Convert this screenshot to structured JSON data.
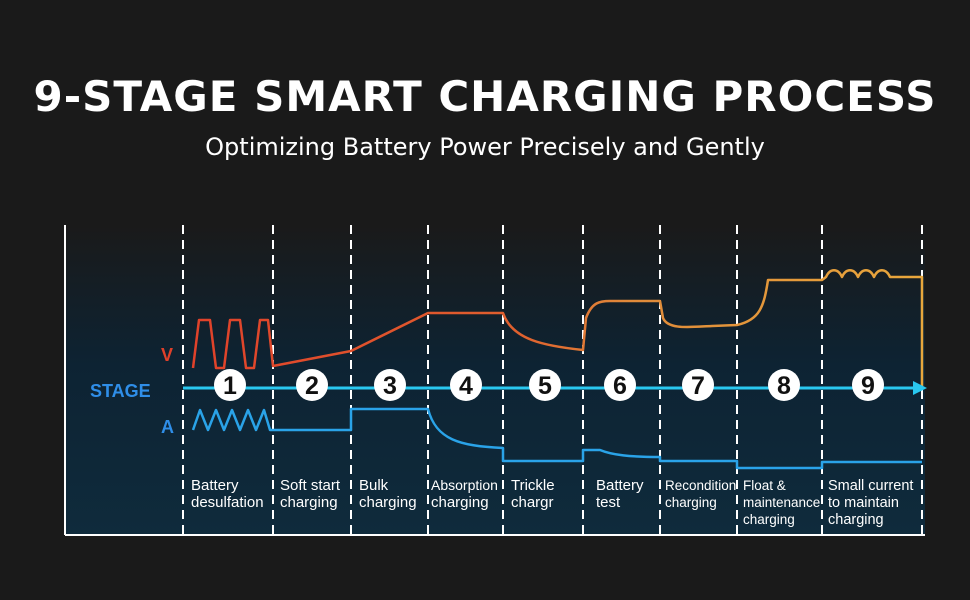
{
  "header": {
    "title": "9-STAGE SMART CHARGING PROCESS",
    "subtitle": "Optimizing Battery Power Precisely and Gently"
  },
  "axis_labels": {
    "voltage": "V",
    "stage": "STAGE",
    "current": "A"
  },
  "colors": {
    "background": "#1a1a1a",
    "panel": "#0f2a3a",
    "voltage_early": "#e04a2a",
    "voltage_late": "#e8a23c",
    "current": "#2aa3e8",
    "stage_line": "#29c8f0"
  },
  "stages": [
    {
      "number": "1",
      "label_lines": [
        "Battery",
        "desulfation"
      ]
    },
    {
      "number": "2",
      "label_lines": [
        "Soft start",
        "charging"
      ]
    },
    {
      "number": "3",
      "label_lines": [
        "Bulk",
        "charging"
      ]
    },
    {
      "number": "4",
      "label_lines": [
        "Absorption",
        "charging"
      ]
    },
    {
      "number": "5",
      "label_lines": [
        "Trickle",
        "chargr"
      ]
    },
    {
      "number": "6",
      "label_lines": [
        "Battery",
        "test"
      ]
    },
    {
      "number": "7",
      "label_lines": [
        "Recondition",
        "charging"
      ]
    },
    {
      "number": "8",
      "label_lines": [
        "Float &",
        "maintenance",
        "charging"
      ]
    },
    {
      "number": "9",
      "label_lines": [
        "Small current",
        "to maintain",
        "charging"
      ]
    }
  ]
}
